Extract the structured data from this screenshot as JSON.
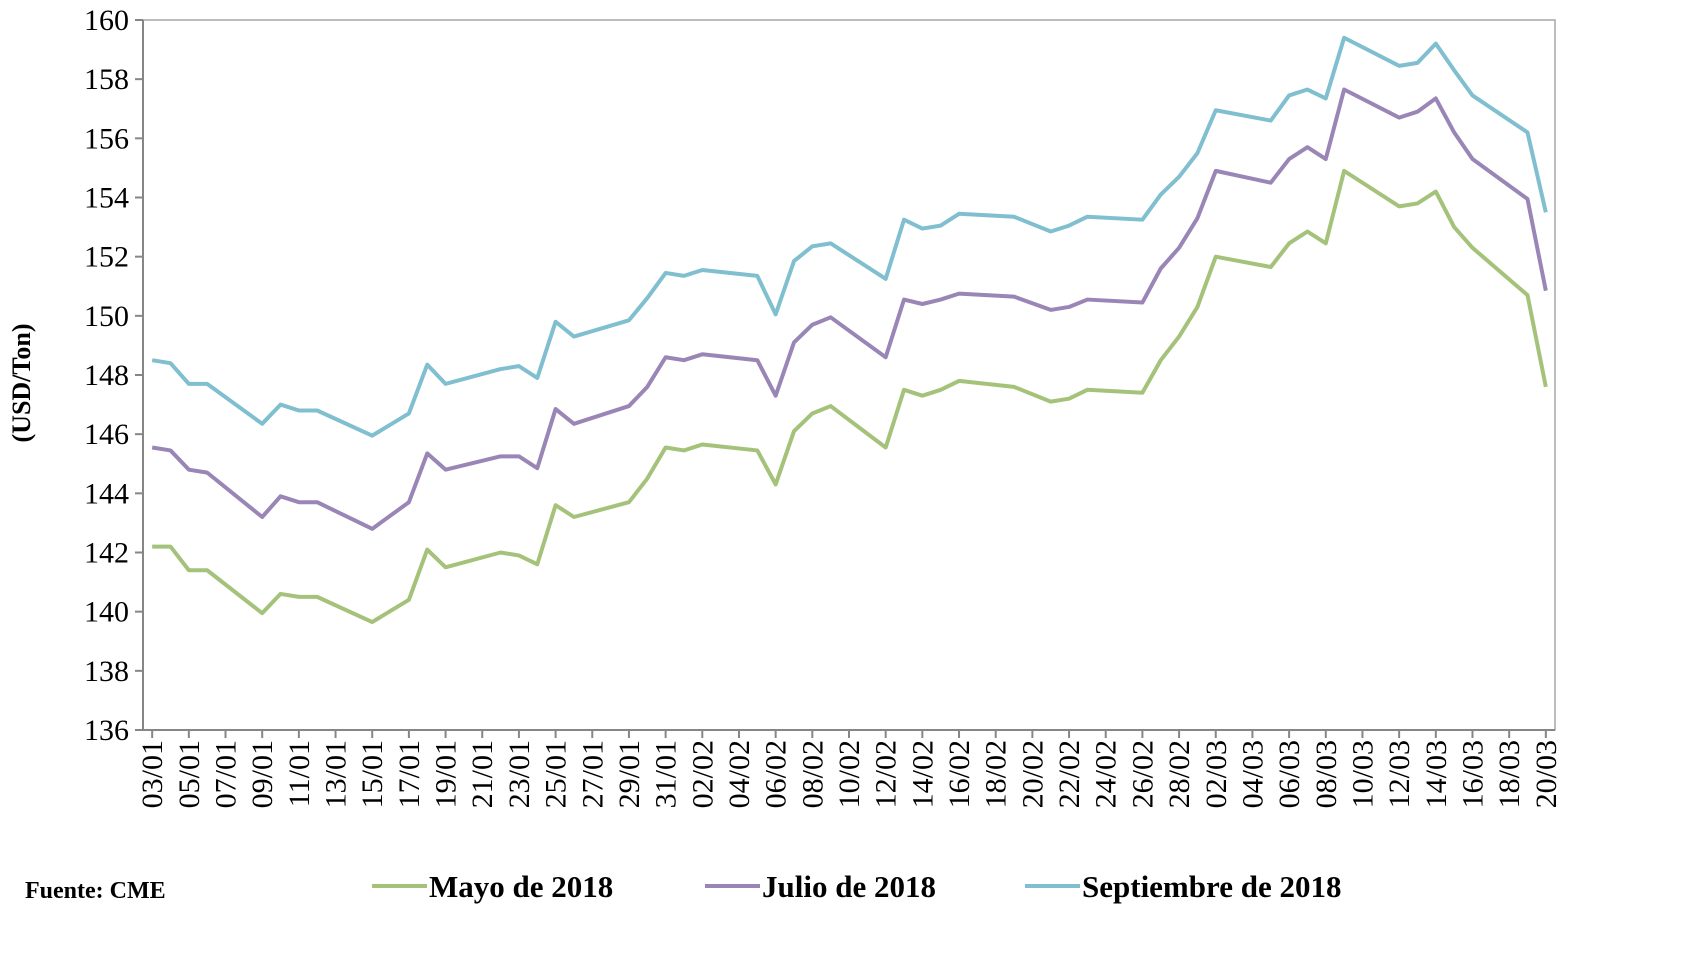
{
  "chart_data": {
    "type": "line",
    "y_label": "(USD/Ton)",
    "source": "Fuente: CME",
    "x": [
      "03/01",
      "04/01",
      "05/01",
      "06/01",
      "09/01",
      "10/01",
      "11/01",
      "12/01",
      "15/01",
      "17/01",
      "18/01",
      "19/01",
      "22/01",
      "23/01",
      "24/01",
      "25/01",
      "26/01",
      "29/01",
      "30/01",
      "31/01",
      "01/02",
      "02/02",
      "05/02",
      "06/02",
      "07/02",
      "08/02",
      "09/02",
      "12/02",
      "13/02",
      "14/02",
      "15/02",
      "16/02",
      "19/02",
      "21/02",
      "22/02",
      "23/02",
      "26/02",
      "27/02",
      "28/02",
      "01/03",
      "02/03",
      "05/03",
      "06/03",
      "07/03",
      "08/03",
      "09/03",
      "12/03",
      "13/03",
      "14/03",
      "15/03",
      "16/03",
      "19/03",
      "20/03"
    ],
    "series": [
      {
        "name": "Mayo de 2018",
        "color": "#a4c27a",
        "values": [
          142.2,
          142.2,
          141.4,
          141.4,
          139.95,
          140.6,
          140.5,
          140.5,
          139.65,
          140.4,
          142.1,
          141.5,
          142.0,
          141.9,
          141.6,
          143.6,
          143.2,
          143.7,
          144.5,
          145.55,
          145.45,
          145.65,
          145.45,
          144.3,
          146.1,
          146.7,
          146.95,
          145.55,
          147.5,
          147.3,
          147.5,
          147.8,
          147.6,
          147.1,
          147.2,
          147.5,
          147.4,
          148.5,
          149.3,
          150.3,
          152.0,
          151.65,
          152.45,
          152.85,
          152.45,
          154.9,
          153.7,
          153.8,
          154.2,
          153.0,
          152.3,
          150.7,
          147.6
        ]
      },
      {
        "name": "Julio de 2018",
        "color": "#9a86b6",
        "values": [
          145.55,
          145.45,
          144.8,
          144.7,
          143.2,
          143.9,
          143.7,
          143.7,
          142.8,
          143.7,
          145.35,
          144.8,
          145.25,
          145.25,
          144.85,
          146.85,
          146.35,
          146.95,
          147.6,
          148.6,
          148.5,
          148.7,
          148.5,
          147.3,
          149.1,
          149.7,
          149.95,
          148.6,
          150.55,
          150.4,
          150.55,
          150.75,
          150.65,
          150.2,
          150.3,
          150.55,
          150.45,
          151.6,
          152.3,
          153.3,
          154.9,
          154.5,
          155.3,
          155.7,
          155.3,
          157.65,
          156.7,
          156.9,
          157.35,
          156.2,
          155.3,
          153.95,
          150.85
        ]
      },
      {
        "name": "Septiembre de 2018",
        "color": "#80bfcf",
        "values": [
          148.5,
          148.4,
          147.7,
          147.7,
          146.35,
          147.0,
          146.8,
          146.8,
          145.95,
          146.7,
          148.35,
          147.7,
          148.2,
          148.3,
          147.9,
          149.8,
          149.3,
          149.85,
          150.6,
          151.45,
          151.35,
          151.55,
          151.35,
          150.05,
          151.85,
          152.35,
          152.45,
          151.25,
          153.25,
          152.95,
          153.05,
          153.45,
          153.35,
          152.85,
          153.05,
          153.35,
          153.25,
          154.1,
          154.7,
          155.5,
          156.95,
          156.6,
          157.45,
          157.65,
          157.35,
          159.4,
          158.45,
          158.55,
          159.2,
          158.3,
          157.45,
          156.2,
          153.5
        ]
      }
    ],
    "xticks": [
      "03/01",
      "05/01",
      "07/01",
      "09/01",
      "11/01",
      "13/01",
      "15/01",
      "17/01",
      "19/01",
      "21/01",
      "23/01",
      "25/01",
      "27/01",
      "29/01",
      "31/01",
      "02/02",
      "04/02",
      "06/02",
      "08/02",
      "10/02",
      "12/02",
      "14/02",
      "16/02",
      "18/02",
      "20/02",
      "22/02",
      "24/02",
      "26/02",
      "28/02",
      "02/03",
      "04/03",
      "06/03",
      "08/03",
      "10/03",
      "12/03",
      "14/03",
      "16/03",
      "18/03",
      "20/03"
    ],
    "ylim": [
      136,
      160
    ],
    "yticks": [
      136,
      138,
      140,
      142,
      144,
      146,
      148,
      150,
      152,
      154,
      156,
      158,
      160
    ]
  }
}
